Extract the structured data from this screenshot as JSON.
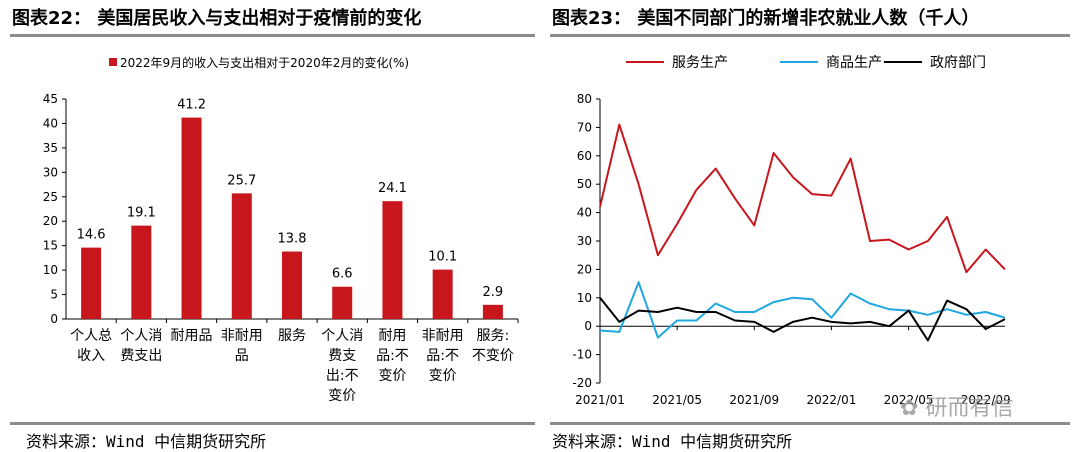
{
  "left": {
    "title": "图表22： 美国居民收入与支出相对于疫情前的变化",
    "source": "资料来源：Wind 中信期货研究所",
    "chart_data": {
      "type": "bar",
      "title": "图表22： 美国居民收入与支出相对于疫情前的变化",
      "legend": "2022年9月的收入与支出相对于2020年2月的变化(%)",
      "legend_position": "top",
      "categories": [
        [
          "个人总",
          "收入"
        ],
        [
          "个人消",
          "费支出"
        ],
        [
          "耐用品"
        ],
        [
          "非耐用",
          "品"
        ],
        [
          "服务"
        ],
        [
          "个人消",
          "费支",
          "出:不",
          "变价"
        ],
        [
          "耐用",
          "品:不",
          "变价"
        ],
        [
          "非耐用",
          "品:不",
          "变价"
        ],
        [
          "服务:",
          "不变价"
        ]
      ],
      "values": [
        14.6,
        19.1,
        41.2,
        25.7,
        13.8,
        6.6,
        24.1,
        10.1,
        2.9
      ],
      "labels": [
        "14.6",
        "19.1",
        "41.2",
        "25.7",
        "13.8",
        "6.6",
        "24.1",
        "10.1",
        "2.9"
      ],
      "ylim": [
        0,
        45
      ],
      "yticks": [
        0,
        5,
        10,
        15,
        20,
        25,
        30,
        35,
        40,
        45
      ],
      "bar_color": "#c8161d"
    }
  },
  "right": {
    "title": "图表23： 美国不同部门的新增非农就业人数（千人）",
    "source": "资料来源：Wind 中信期货研究所",
    "chart_data": {
      "type": "line",
      "title": "图表23： 美国不同部门的新增非农就业人数（千人）",
      "legend_position": "top",
      "ylim": [
        -20,
        80
      ],
      "yticks": [
        -20,
        -10,
        0,
        10,
        20,
        30,
        40,
        50,
        60,
        70,
        80
      ],
      "x_count": 22,
      "xticks": [
        {
          "i": 0,
          "label": "2021/01"
        },
        {
          "i": 4,
          "label": "2021/05"
        },
        {
          "i": 8,
          "label": "2021/09"
        },
        {
          "i": 12,
          "label": "2022/01"
        },
        {
          "i": 16,
          "label": "2022/05"
        },
        {
          "i": 20,
          "label": "2022/09"
        }
      ],
      "series": [
        {
          "name": "服务生产",
          "color": "#c8161d",
          "values": [
            42,
            71,
            50,
            25,
            36,
            48,
            55.5,
            45,
            35.5,
            61,
            52.5,
            46.5,
            46,
            59,
            30,
            30.5,
            27,
            30,
            38.5,
            19,
            27,
            20
          ]
        },
        {
          "name": "商品生产",
          "color": "#1fa7e0",
          "values": [
            -1.5,
            -2,
            15.5,
            -4,
            2,
            2,
            8,
            5,
            5,
            8.5,
            10,
            9.5,
            3,
            11.5,
            8,
            6,
            5.5,
            4,
            6,
            4,
            5,
            3
          ]
        },
        {
          "name": "政府部门",
          "color": "#000000",
          "values": [
            10,
            1.5,
            5.5,
            5,
            6.5,
            5,
            5,
            2,
            1.5,
            -2,
            1.5,
            3,
            1.5,
            1,
            1.5,
            0,
            5.5,
            -5,
            9,
            6,
            -1,
            2.5
          ]
        }
      ]
    }
  },
  "watermark": "研而有信"
}
